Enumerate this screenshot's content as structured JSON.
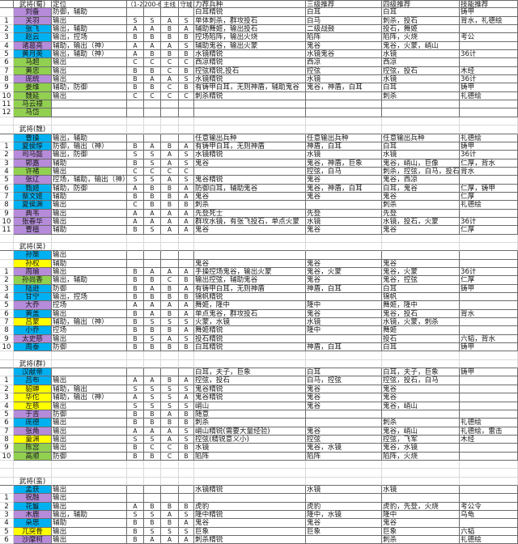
{
  "palette": {
    "purple": "#B58BDA",
    "blue": "#00B0F0",
    "green": "#92D050",
    "yellow": "#FFFF00"
  },
  "header": {
    "col_role": "定位",
    "col_g1": "（1-2",
    "col_g2": "200-6",
    "col_g3": "主线",
    "col_g4": "守城",
    "col_troop": "力荐兵种",
    "col_lv3": "三级推荐",
    "col_lv4": "四级推荐",
    "col_skill": "技能推荐"
  },
  "sections": [
    {
      "title": "武将(蜀)",
      "rows": [
        {
          "no": "",
          "name": "刘备",
          "color": "purple",
          "role": "防御，辅助",
          "g": [
            "",
            "",
            "",
            ""
          ],
          "troop": "白耳精锐",
          "lv3": "白耳",
          "lv4": "白耳",
          "skill": "铸甲"
        },
        {
          "no": "1",
          "name": "关羽",
          "color": "purple",
          "role": "输出",
          "g": [
            "S",
            "S",
            "A",
            "S"
          ],
          "troop": "单体刺杀，群攻投石",
          "lv3": "白马",
          "lv4": "刺杀，投石",
          "skill": "背水，礼德绘"
        },
        {
          "no": "2",
          "name": "张飞",
          "color": "blue",
          "role": "输出，辅助",
          "g": [
            "A",
            "A",
            "B",
            "A"
          ],
          "troop": "辅助舞姬，输出投石",
          "lv3": "二级战鼓",
          "lv4": "投石，舞姬",
          "skill": ""
        },
        {
          "no": "3",
          "name": "赵云",
          "color": "blue",
          "role": "输出，控场",
          "g": [
            "B",
            "B",
            "B",
            "B"
          ],
          "troop": "控场陷阵，输出火烧",
          "lv3": "陷阵",
          "lv4": "陷阵，火烧",
          "skill": "考公"
        },
        {
          "no": "4",
          "name": "诸葛亮",
          "color": "purple",
          "role": "辅助，输出（神）",
          "g": [
            "A",
            "A",
            "A",
            "S"
          ],
          "troop": "辅助鬼谷，输出火蒙",
          "lv3": "鬼谷",
          "lv4": "鬼谷，火蒙，峭山",
          "skill": ""
        },
        {
          "no": "5",
          "name": "黄月英",
          "color": "blue",
          "role": "输出，辅助（神）",
          "g": [
            "A",
            "B",
            "B",
            "B"
          ],
          "troop": "水镜精锐",
          "lv3": "水镜鬼谷",
          "lv4": "水镜",
          "skill": "36计"
        },
        {
          "no": "6",
          "name": "马超",
          "color": "green",
          "role": "输出",
          "g": [
            "C",
            "C",
            "C",
            "C"
          ],
          "troop": "西凉精锐",
          "lv3": "西凉",
          "lv4": "西凉",
          "skill": ""
        },
        {
          "no": "7",
          "name": "黄忠",
          "color": "green",
          "role": "输出",
          "g": [
            "B",
            "B",
            "C",
            "B"
          ],
          "troop": "控弦精锐,投石",
          "lv3": "控弦",
          "lv4": "控弦，投石",
          "skill": "木经"
        },
        {
          "no": "8",
          "name": "庞统",
          "color": "purple",
          "role": "输出",
          "g": [
            "B",
            "A",
            "A",
            "S"
          ],
          "troop": "水镜精锐",
          "lv3": "水镜",
          "lv4": "水镜",
          "skill": "36计"
        },
        {
          "no": "9",
          "name": "姜维",
          "color": "green",
          "role": "辅助，防御",
          "g": [
            "B",
            "B",
            "C",
            "B"
          ],
          "troop": "有铸甲白耳，无则神盾，辅助鬼谷",
          "lv3": "鬼谷，神盾，白耳",
          "lv4": "白耳",
          "skill": "铸甲"
        },
        {
          "no": "10",
          "name": "魏延",
          "color": "green",
          "role": "输出",
          "g": [
            "C",
            "C",
            "C",
            "C"
          ],
          "troop": "刺杀精锐",
          "lv3": "",
          "lv4": "刺杀",
          "skill": "礼德绘"
        },
        {
          "no": "11",
          "name": "马云禄",
          "color": "green",
          "role": "",
          "g": [
            "",
            "",
            "",
            ""
          ],
          "troop": "",
          "lv3": "",
          "lv4": "",
          "skill": ""
        },
        {
          "no": "12",
          "name": "马岱",
          "color": "green",
          "role": "",
          "g": [
            "",
            "",
            "",
            ""
          ],
          "troop": "",
          "lv3": "",
          "lv4": "",
          "skill": ""
        }
      ]
    },
    {
      "title": "武将(魏)",
      "rows": [
        {
          "no": "",
          "name": "曹操",
          "color": "blue",
          "role": "输出，辅助",
          "g": [
            "",
            "",
            "",
            ""
          ],
          "troop": "任意输出兵种",
          "lv3": "任意输出兵种",
          "lv4": "任意输出兵种",
          "skill": "礼德绘"
        },
        {
          "no": "1",
          "name": "夏侯惇",
          "color": "blue",
          "role": "防御，输出（神）",
          "g": [
            "B",
            "A",
            "B",
            "A"
          ],
          "troop": "有铸甲白耳，无则神盾",
          "lv3": "神盾，白耳",
          "lv4": "白耳",
          "skill": "铸甲"
        },
        {
          "no": "2",
          "name": "司马懿",
          "color": "purple",
          "role": "输出，防御",
          "g": [
            "S",
            "S",
            "A",
            "S"
          ],
          "troop": "水镜精锐",
          "lv3": "水镜",
          "lv4": "水镜",
          "skill": "36计"
        },
        {
          "no": "3",
          "name": "郭嘉",
          "color": "purple",
          "role": "辅助",
          "g": [
            "B",
            "S",
            "A",
            "S"
          ],
          "troop": "鬼谷",
          "lv3": "鬼谷，神盾，巨象",
          "lv4": "鬼谷，峭山，巨像",
          "skill": "仁厚，背水"
        },
        {
          "no": "4",
          "name": "许褚",
          "color": "green",
          "role": "输出",
          "g": [
            "C",
            "C",
            "C",
            "C"
          ],
          "troop": "",
          "lv3": "控弦，白马",
          "lv4": "刺杀，控弦，白马，投石",
          "skill": "背水"
        },
        {
          "no": "5",
          "name": "张辽",
          "color": "purple",
          "role": "控场，辅助，输出（神）",
          "g": [
            "S",
            "S",
            "A",
            "S"
          ],
          "troop": "鬼谷精锐",
          "lv3": "鬼谷",
          "lv4": "鬼谷，西凉",
          "skill": ""
        },
        {
          "no": "6",
          "name": "甄姬",
          "color": "blue",
          "role": "辅助，防御",
          "g": [
            "A",
            "B",
            "B",
            "A"
          ],
          "troop": "防御白耳，辅助鬼谷",
          "lv3": "鬼谷，神盾，白耳",
          "lv4": "白耳，鬼谷",
          "skill": "仁厚，铸甲"
        },
        {
          "no": "7",
          "name": "蔡文姬",
          "color": "blue",
          "role": "辅助",
          "g": [
            "B",
            "B",
            "B",
            "A"
          ],
          "troop": "鬼谷",
          "lv3": "鬼谷",
          "lv4": "鬼谷",
          "skill": "仁厚"
        },
        {
          "no": "8",
          "name": "夏侯渊",
          "color": "blue",
          "role": "输出",
          "g": [
            "C",
            "B",
            "B",
            "B"
          ],
          "troop": "刺杀",
          "lv3": "",
          "lv4": "刺杀",
          "skill": "礼德绘"
        },
        {
          "no": "9",
          "name": "典韦",
          "color": "purple",
          "role": "输出",
          "g": [
            "A",
            "A",
            "A",
            "A"
          ],
          "troop": "先登死士",
          "lv3": "先登",
          "lv4": "先登",
          "skill": ""
        },
        {
          "no": "10",
          "name": "张春华",
          "color": "purple",
          "role": "输出",
          "g": [
            "A",
            "A",
            "A",
            "A"
          ],
          "troop": "群攻水镜，有张飞投石，单点火蒙",
          "lv3": "水镜",
          "lv4": "水镜，投石，火蒙",
          "skill": "36计"
        },
        {
          "no": "11",
          "name": "曹植",
          "color": "purple",
          "role": "辅助",
          "g": [
            "B",
            "S",
            "A",
            "A"
          ],
          "troop": "鬼谷",
          "lv3": "鬼谷",
          "lv4": "鬼谷",
          "skill": "仁厚"
        }
      ]
    },
    {
      "title": "武将(吴)",
      "rows": [
        {
          "no": "",
          "name": "孙策",
          "color": "blue",
          "role": "输出",
          "g": [
            "",
            "",
            "",
            ""
          ],
          "troop": "",
          "lv3": "",
          "lv4": "",
          "skill": ""
        },
        {
          "no": "",
          "name": "孙权",
          "color": "yellow",
          "role": "辅助",
          "g": [
            "",
            "",
            "",
            ""
          ],
          "troop": "鬼谷",
          "lv3": "鬼谷",
          "lv4": "鬼谷",
          "skill": ""
        },
        {
          "no": "1",
          "name": "周瑜",
          "color": "purple",
          "role": "输出",
          "g": [
            "B",
            "A",
            "A",
            "A"
          ],
          "troop": "手操控场鬼谷，输出火蒙",
          "lv3": "鬼谷，火蒙",
          "lv4": "鬼谷，火蒙",
          "skill": "36计"
        },
        {
          "no": "2",
          "name": "孙尚香",
          "color": "green",
          "role": "输出，辅助",
          "g": [
            "B",
            "B",
            "C",
            "B"
          ],
          "troop": "输出控弦，辅助鬼谷",
          "lv3": "鬼谷",
          "lv4": "鬼谷，控弦",
          "skill": "仁厚"
        },
        {
          "no": "3",
          "name": "陆逊",
          "color": "blue",
          "role": "防御",
          "g": [
            "B",
            "A",
            "B",
            "A"
          ],
          "troop": "有铸甲白耳，无则神盾",
          "lv3": "神盾，白耳",
          "lv4": "白耳",
          "skill": "铸甲"
        },
        {
          "no": "4",
          "name": "甘宁",
          "color": "blue",
          "role": "输出，控场",
          "g": [
            "B",
            "B",
            "B",
            "B"
          ],
          "troop": "锦帆精锐",
          "lv3": "",
          "lv4": "锦帆",
          "skill": ""
        },
        {
          "no": "5",
          "name": "大乔",
          "color": "purple",
          "role": "控场",
          "g": [
            "A",
            "A",
            "A",
            "A"
          ],
          "troop": "舞姬，隆中",
          "lv3": "隆中",
          "lv4": "舞姬，隆中",
          "skill": ""
        },
        {
          "no": "6",
          "name": "黄盖",
          "color": "blue",
          "role": "输出",
          "g": [
            "B",
            "A",
            "B",
            "A"
          ],
          "troop": "单点鬼谷，群攻投石",
          "lv3": "鬼谷",
          "lv4": "鬼谷，投石",
          "skill": "背水"
        },
        {
          "no": "7",
          "name": "吕蒙",
          "color": "yellow",
          "role": "辅助，输出（神）",
          "g": [
            "B",
            "S",
            "S",
            "S"
          ],
          "troop": "火蒙，水镜",
          "lv3": "水镜",
          "lv4": "水镜，火蒙，刺杀",
          "skill": ""
        },
        {
          "no": "8",
          "name": "小乔",
          "color": "blue",
          "role": "控场",
          "g": [
            "B",
            "B",
            "B",
            "A"
          ],
          "troop": "舞姬精锐",
          "lv3": "隆中",
          "lv4": "舞姬",
          "skill": ""
        },
        {
          "no": "9",
          "name": "太史慈",
          "color": "purple",
          "role": "输出",
          "g": [
            "B",
            "S",
            "A",
            "S"
          ],
          "troop": "投石精锐",
          "lv3": "",
          "lv4": "投石",
          "skill": "六韬，背水"
        },
        {
          "no": "10",
          "name": "周泰",
          "color": "blue",
          "role": "防御",
          "g": [
            "B",
            "B",
            "B",
            "B"
          ],
          "troop": "白耳精锐",
          "lv3": "神盾，白耳",
          "lv4": "白耳",
          "skill": "铸甲"
        }
      ]
    },
    {
      "title": "武将(群)",
      "rows": [
        {
          "no": "",
          "name": "汉献帝",
          "color": "blue",
          "role": "",
          "g": [
            "",
            "",
            "",
            ""
          ],
          "troop": "白耳，夫子，巨象",
          "lv3": "白耳",
          "lv4": "白耳，夫子，巨象",
          "skill": "铸甲"
        },
        {
          "no": "1",
          "name": "吕布",
          "color": "blue",
          "role": "输出",
          "g": [
            "A",
            "A",
            "B",
            "A"
          ],
          "troop": "控弦，投石",
          "lv3": "白马，控弦",
          "lv4": "控弦，投石，白马",
          "skill": ""
        },
        {
          "no": "2",
          "name": "貂蝉",
          "color": "yellow",
          "role": "辅助，输出",
          "g": [
            "S",
            "S",
            "S",
            "S"
          ],
          "troop": "鬼谷精锐",
          "lv3": "鬼谷",
          "lv4": "鬼谷",
          "skill": ""
        },
        {
          "no": "3",
          "name": "华佗",
          "color": "yellow",
          "role": "辅助，输出（神）",
          "g": [
            "A",
            "S",
            "S",
            "A"
          ],
          "troop": "鬼谷精锐",
          "lv3": "鬼谷",
          "lv4": "鬼谷",
          "skill": ""
        },
        {
          "no": "4",
          "name": "左慈",
          "color": "yellow",
          "role": "输出",
          "g": [
            "S",
            "S",
            "S",
            "S"
          ],
          "troop": "峭山",
          "lv3": "鬼谷",
          "lv4": "鬼谷，峭山",
          "skill": ""
        },
        {
          "no": "5",
          "name": "于吉",
          "color": "purple",
          "role": "防御",
          "g": [
            "B",
            "B",
            "A",
            "B"
          ],
          "troop": "随意",
          "lv3": "",
          "lv4": "",
          "skill": ""
        },
        {
          "no": "6",
          "name": "庞德",
          "color": "blue",
          "role": "输出",
          "g": [
            "B",
            "B",
            "B",
            "B"
          ],
          "troop": "刺杀",
          "lv3": "",
          "lv4": "刺杀",
          "skill": "礼德绘"
        },
        {
          "no": "7",
          "name": "张角",
          "color": "purple",
          "role": "输出",
          "g": [
            "A",
            "A",
            "A",
            "S"
          ],
          "troop": "峭山精锐(需要大量经验)",
          "lv3": "鬼谷",
          "lv4": "鬼谷，峭山",
          "skill": "礼德绘，雷击"
        },
        {
          "no": "8",
          "name": "童渊",
          "color": "yellow",
          "role": "输出",
          "g": [
            "S",
            "S",
            "A",
            "S"
          ],
          "troop": "控弦(精锐意义小)",
          "lv3": "控弦",
          "lv4": "控弦，飞军",
          "skill": "木经"
        },
        {
          "no": "9",
          "name": "陈宫",
          "color": "green",
          "role": "输出",
          "g": [
            "B",
            "C",
            "C",
            "B"
          ],
          "troop": "水镜",
          "lv3": "鬼谷，水镜",
          "lv4": "鬼谷，水镜",
          "skill": ""
        },
        {
          "no": "10",
          "name": "高顺",
          "color": "green",
          "role": "防御",
          "g": [
            "B",
            "B",
            "C",
            "B"
          ],
          "troop": "陷阵",
          "lv3": "陷阵",
          "lv4": "陷阵，火烧",
          "skill": ""
        }
      ]
    },
    {
      "title": "武将(蛮)",
      "rows": [
        {
          "no": "",
          "name": "孟获",
          "color": "blue",
          "role": "输出",
          "g": [
            "",
            "",
            "",
            ""
          ],
          "troop": "水镜精锐",
          "lv3": "水镜",
          "lv4": "水镜",
          "skill": ""
        },
        {
          "no": "1",
          "name": "祝融",
          "color": "purple",
          "role": "输出",
          "g": [
            "",
            "",
            "",
            ""
          ],
          "troop": "",
          "lv3": "",
          "lv4": "",
          "skill": ""
        },
        {
          "no": "2",
          "name": "花鬘",
          "color": "blue",
          "role": "输出",
          "g": [
            "A",
            "B",
            "B",
            "B"
          ],
          "troop": "虎豹",
          "lv3": "虎豹",
          "lv4": "虎豹，先登，火烧",
          "skill": "考公令"
        },
        {
          "no": "3",
          "name": "木鹿",
          "color": "purple",
          "role": "输出，辅助",
          "g": [
            "S",
            "S",
            "A",
            "S"
          ],
          "troop": "隆中精锐",
          "lv3": "隆中，水镜",
          "lv4": "隆中",
          "skill": "乌龟"
        },
        {
          "no": "4",
          "name": "朵思",
          "color": "blue",
          "role": "辅助",
          "g": [
            "B",
            "B",
            "B",
            "A"
          ],
          "troop": "鬼谷",
          "lv3": "鬼谷",
          "lv4": "鬼谷",
          "skill": ""
        },
        {
          "no": "5",
          "name": "兀突骨",
          "color": "yellow",
          "role": "输出",
          "g": [
            "B",
            "S",
            "S",
            "S"
          ],
          "troop": "巨象",
          "lv3": "巨象",
          "lv4": "巨象",
          "skill": "六韬"
        },
        {
          "no": "6",
          "name": "沙摩柯",
          "color": "purple",
          "role": "输出",
          "g": [
            "B",
            "A",
            "A",
            "A"
          ],
          "troop": "刺杀精锐",
          "lv3": "",
          "lv4": "刺杀",
          "skill": "礼德绘"
        }
      ]
    }
  ]
}
